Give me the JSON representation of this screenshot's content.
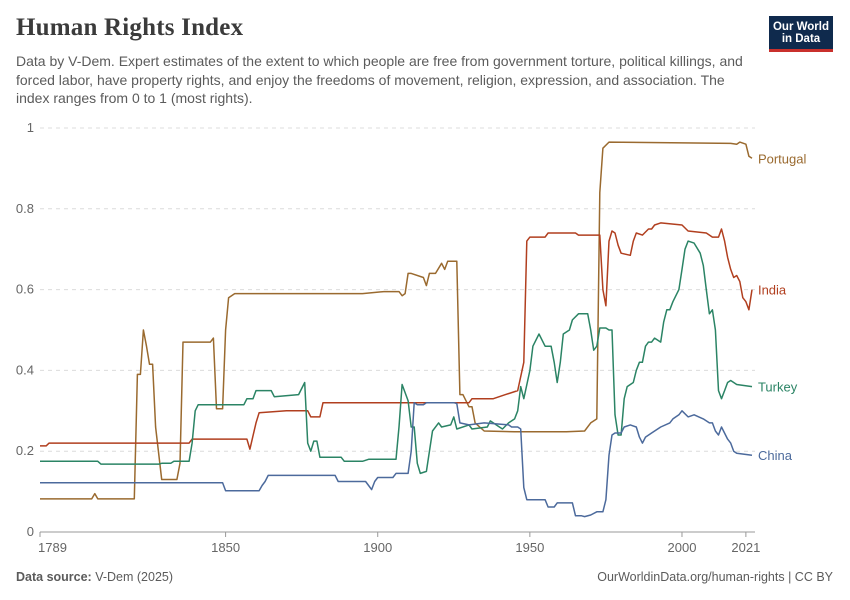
{
  "header": {
    "title": "Human Rights Index",
    "subtitle": "Data by V-Dem. Expert estimates of the extent to which people are free from government torture, political killings, and forced labor, have property rights, and enjoy the freedoms of movement, religion, expression, and association. The index ranges from 0 to 1 (most rights).",
    "logo_line1": "Our World",
    "logo_line2": "in Data"
  },
  "footer": {
    "source_label": "Data source:",
    "source_value": "V-Dem (2025)",
    "url_license": "OurWorldinData.org/human-rights | CC BY"
  },
  "chart_data": {
    "type": "line",
    "xlim": [
      1789,
      2024
    ],
    "ylim": [
      0,
      1
    ],
    "x_ticks": [
      1789,
      1850,
      1900,
      1950,
      2000,
      2021
    ],
    "y_ticks": [
      0,
      0.2,
      0.4,
      0.6,
      0.8,
      1
    ],
    "y_tick_labels": [
      "0",
      "0.2",
      "0.4",
      "0.6",
      "0.8",
      "1"
    ],
    "grid": "horizontal-dashed",
    "legend": "line-end labels",
    "series": [
      {
        "name": "Portugal",
        "color": "#9a6a2f",
        "points": [
          [
            1789,
            0.082
          ],
          [
            1806,
            0.082
          ],
          [
            1807,
            0.095
          ],
          [
            1808,
            0.082
          ],
          [
            1820,
            0.082
          ],
          [
            1821,
            0.39
          ],
          [
            1822,
            0.39
          ],
          [
            1823,
            0.5
          ],
          [
            1824,
            0.46
          ],
          [
            1825,
            0.415
          ],
          [
            1826,
            0.415
          ],
          [
            1827,
            0.26
          ],
          [
            1829,
            0.13
          ],
          [
            1834,
            0.13
          ],
          [
            1835,
            0.17
          ],
          [
            1836,
            0.47
          ],
          [
            1845,
            0.47
          ],
          [
            1846,
            0.48
          ],
          [
            1847,
            0.305
          ],
          [
            1849,
            0.305
          ],
          [
            1850,
            0.5
          ],
          [
            1851,
            0.58
          ],
          [
            1853,
            0.59
          ],
          [
            1895,
            0.59
          ],
          [
            1902,
            0.595
          ],
          [
            1907,
            0.595
          ],
          [
            1908,
            0.585
          ],
          [
            1909,
            0.59
          ],
          [
            1910,
            0.64
          ],
          [
            1911,
            0.64
          ],
          [
            1915,
            0.63
          ],
          [
            1916,
            0.61
          ],
          [
            1917,
            0.64
          ],
          [
            1919,
            0.64
          ],
          [
            1921,
            0.665
          ],
          [
            1922,
            0.65
          ],
          [
            1923,
            0.67
          ],
          [
            1926,
            0.67
          ],
          [
            1927,
            0.34
          ],
          [
            1928,
            0.34
          ],
          [
            1930,
            0.31
          ],
          [
            1931,
            0.31
          ],
          [
            1932,
            0.27
          ],
          [
            1935,
            0.25
          ],
          [
            1945,
            0.248
          ],
          [
            1962,
            0.248
          ],
          [
            1968,
            0.25
          ],
          [
            1970,
            0.27
          ],
          [
            1972,
            0.28
          ],
          [
            1973,
            0.84
          ],
          [
            1974,
            0.95
          ],
          [
            1976,
            0.965
          ],
          [
            2016,
            0.962
          ],
          [
            2018,
            0.96
          ],
          [
            2019,
            0.965
          ],
          [
            2021,
            0.96
          ],
          [
            2022,
            0.93
          ],
          [
            2023,
            0.925
          ]
        ]
      },
      {
        "name": "India",
        "color": "#b13f1f",
        "points": [
          [
            1789,
            0.213
          ],
          [
            1791,
            0.213
          ],
          [
            1792,
            0.22
          ],
          [
            1838,
            0.22
          ],
          [
            1839,
            0.23
          ],
          [
            1844,
            0.23
          ],
          [
            1857,
            0.23
          ],
          [
            1858,
            0.205
          ],
          [
            1860,
            0.27
          ],
          [
            1861,
            0.295
          ],
          [
            1870,
            0.3
          ],
          [
            1877,
            0.3
          ],
          [
            1878,
            0.285
          ],
          [
            1881,
            0.285
          ],
          [
            1882,
            0.32
          ],
          [
            1900,
            0.32
          ],
          [
            1912,
            0.32
          ],
          [
            1921,
            0.32
          ],
          [
            1930,
            0.32
          ],
          [
            1931,
            0.33
          ],
          [
            1938,
            0.33
          ],
          [
            1942,
            0.34
          ],
          [
            1946,
            0.35
          ],
          [
            1948,
            0.42
          ],
          [
            1949,
            0.72
          ],
          [
            1950,
            0.73
          ],
          [
            1955,
            0.73
          ],
          [
            1956,
            0.74
          ],
          [
            1965,
            0.74
          ],
          [
            1966,
            0.735
          ],
          [
            1973,
            0.735
          ],
          [
            1974,
            0.6
          ],
          [
            1975,
            0.56
          ],
          [
            1976,
            0.72
          ],
          [
            1977,
            0.745
          ],
          [
            1978,
            0.74
          ],
          [
            1979,
            0.71
          ],
          [
            1980,
            0.69
          ],
          [
            1983,
            0.685
          ],
          [
            1984,
            0.72
          ],
          [
            1985,
            0.74
          ],
          [
            1987,
            0.735
          ],
          [
            1989,
            0.75
          ],
          [
            1990,
            0.75
          ],
          [
            1991,
            0.76
          ],
          [
            1993,
            0.765
          ],
          [
            2000,
            0.76
          ],
          [
            2002,
            0.745
          ],
          [
            2008,
            0.74
          ],
          [
            2010,
            0.73
          ],
          [
            2011,
            0.73
          ],
          [
            2012,
            0.73
          ],
          [
            2013,
            0.75
          ],
          [
            2014,
            0.72
          ],
          [
            2015,
            0.68
          ],
          [
            2016,
            0.65
          ],
          [
            2017,
            0.63
          ],
          [
            2018,
            0.635
          ],
          [
            2019,
            0.62
          ],
          [
            2020,
            0.58
          ],
          [
            2021,
            0.57
          ],
          [
            2022,
            0.55
          ],
          [
            2023,
            0.6
          ]
        ]
      },
      {
        "name": "Turkey",
        "color": "#2b8465",
        "points": [
          [
            1789,
            0.175
          ],
          [
            1808,
            0.175
          ],
          [
            1809,
            0.168
          ],
          [
            1828,
            0.168
          ],
          [
            1829,
            0.17
          ],
          [
            1832,
            0.17
          ],
          [
            1833,
            0.175
          ],
          [
            1838,
            0.175
          ],
          [
            1839,
            0.22
          ],
          [
            1840,
            0.3
          ],
          [
            1841,
            0.315
          ],
          [
            1856,
            0.315
          ],
          [
            1857,
            0.33
          ],
          [
            1859,
            0.33
          ],
          [
            1860,
            0.35
          ],
          [
            1865,
            0.35
          ],
          [
            1866,
            0.335
          ],
          [
            1874,
            0.34
          ],
          [
            1876,
            0.37
          ],
          [
            1877,
            0.22
          ],
          [
            1878,
            0.2
          ],
          [
            1879,
            0.225
          ],
          [
            1880,
            0.225
          ],
          [
            1881,
            0.185
          ],
          [
            1888,
            0.185
          ],
          [
            1889,
            0.175
          ],
          [
            1895,
            0.175
          ],
          [
            1897,
            0.18
          ],
          [
            1902,
            0.18
          ],
          [
            1906,
            0.18
          ],
          [
            1907,
            0.26
          ],
          [
            1908,
            0.365
          ],
          [
            1910,
            0.325
          ],
          [
            1911,
            0.26
          ],
          [
            1912,
            0.26
          ],
          [
            1913,
            0.17
          ],
          [
            1914,
            0.145
          ],
          [
            1916,
            0.15
          ],
          [
            1918,
            0.25
          ],
          [
            1920,
            0.27
          ],
          [
            1921,
            0.26
          ],
          [
            1924,
            0.265
          ],
          [
            1925,
            0.285
          ],
          [
            1926,
            0.255
          ],
          [
            1930,
            0.265
          ],
          [
            1931,
            0.255
          ],
          [
            1936,
            0.26
          ],
          [
            1937,
            0.275
          ],
          [
            1940,
            0.26
          ],
          [
            1941,
            0.255
          ],
          [
            1943,
            0.27
          ],
          [
            1945,
            0.28
          ],
          [
            1946,
            0.3
          ],
          [
            1947,
            0.36
          ],
          [
            1948,
            0.33
          ],
          [
            1950,
            0.4
          ],
          [
            1951,
            0.46
          ],
          [
            1953,
            0.49
          ],
          [
            1955,
            0.46
          ],
          [
            1957,
            0.46
          ],
          [
            1958,
            0.42
          ],
          [
            1959,
            0.37
          ],
          [
            1960,
            0.42
          ],
          [
            1961,
            0.49
          ],
          [
            1963,
            0.5
          ],
          [
            1964,
            0.525
          ],
          [
            1966,
            0.54
          ],
          [
            1969,
            0.54
          ],
          [
            1970,
            0.5
          ],
          [
            1971,
            0.45
          ],
          [
            1972,
            0.46
          ],
          [
            1973,
            0.505
          ],
          [
            1975,
            0.505
          ],
          [
            1976,
            0.5
          ],
          [
            1977,
            0.5
          ],
          [
            1978,
            0.29
          ],
          [
            1979,
            0.24
          ],
          [
            1980,
            0.24
          ],
          [
            1981,
            0.33
          ],
          [
            1982,
            0.36
          ],
          [
            1984,
            0.37
          ],
          [
            1985,
            0.4
          ],
          [
            1986,
            0.42
          ],
          [
            1987,
            0.42
          ],
          [
            1988,
            0.46
          ],
          [
            1989,
            0.47
          ],
          [
            1990,
            0.47
          ],
          [
            1991,
            0.48
          ],
          [
            1993,
            0.47
          ],
          [
            1994,
            0.52
          ],
          [
            1995,
            0.55
          ],
          [
            1996,
            0.55
          ],
          [
            1997,
            0.57
          ],
          [
            1999,
            0.6
          ],
          [
            2000,
            0.65
          ],
          [
            2001,
            0.7
          ],
          [
            2002,
            0.72
          ],
          [
            2004,
            0.715
          ],
          [
            2006,
            0.69
          ],
          [
            2007,
            0.66
          ],
          [
            2008,
            0.6
          ],
          [
            2009,
            0.54
          ],
          [
            2010,
            0.55
          ],
          [
            2011,
            0.5
          ],
          [
            2012,
            0.35
          ],
          [
            2013,
            0.33
          ],
          [
            2014,
            0.35
          ],
          [
            2015,
            0.37
          ],
          [
            2016,
            0.375
          ],
          [
            2018,
            0.365
          ],
          [
            2023,
            0.36
          ]
        ]
      },
      {
        "name": "China",
        "color": "#4c6a9c",
        "points": [
          [
            1789,
            0.122
          ],
          [
            1849,
            0.122
          ],
          [
            1850,
            0.102
          ],
          [
            1861,
            0.102
          ],
          [
            1862,
            0.115
          ],
          [
            1863,
            0.125
          ],
          [
            1864,
            0.14
          ],
          [
            1886,
            0.14
          ],
          [
            1887,
            0.125
          ],
          [
            1896,
            0.125
          ],
          [
            1897,
            0.115
          ],
          [
            1898,
            0.105
          ],
          [
            1899,
            0.125
          ],
          [
            1900,
            0.135
          ],
          [
            1905,
            0.135
          ],
          [
            1906,
            0.145
          ],
          [
            1910,
            0.145
          ],
          [
            1911,
            0.2
          ],
          [
            1912,
            0.32
          ],
          [
            1913,
            0.315
          ],
          [
            1915,
            0.315
          ],
          [
            1916,
            0.32
          ],
          [
            1920,
            0.32
          ],
          [
            1925,
            0.32
          ],
          [
            1926,
            0.318
          ],
          [
            1927,
            0.27
          ],
          [
            1930,
            0.265
          ],
          [
            1935,
            0.27
          ],
          [
            1943,
            0.265
          ],
          [
            1944,
            0.26
          ],
          [
            1946,
            0.26
          ],
          [
            1947,
            0.255
          ],
          [
            1948,
            0.11
          ],
          [
            1949,
            0.08
          ],
          [
            1955,
            0.08
          ],
          [
            1956,
            0.062
          ],
          [
            1958,
            0.062
          ],
          [
            1959,
            0.072
          ],
          [
            1964,
            0.072
          ],
          [
            1965,
            0.04
          ],
          [
            1967,
            0.04
          ],
          [
            1968,
            0.038
          ],
          [
            1970,
            0.042
          ],
          [
            1972,
            0.05
          ],
          [
            1974,
            0.05
          ],
          [
            1975,
            0.08
          ],
          [
            1976,
            0.19
          ],
          [
            1977,
            0.24
          ],
          [
            1978,
            0.245
          ],
          [
            1980,
            0.245
          ],
          [
            1981,
            0.26
          ],
          [
            1983,
            0.265
          ],
          [
            1985,
            0.26
          ],
          [
            1986,
            0.235
          ],
          [
            1987,
            0.22
          ],
          [
            1988,
            0.235
          ],
          [
            1990,
            0.245
          ],
          [
            1993,
            0.26
          ],
          [
            1996,
            0.27
          ],
          [
            1997,
            0.28
          ],
          [
            1999,
            0.29
          ],
          [
            2000,
            0.3
          ],
          [
            2002,
            0.285
          ],
          [
            2004,
            0.29
          ],
          [
            2007,
            0.28
          ],
          [
            2009,
            0.27
          ],
          [
            2010,
            0.27
          ],
          [
            2011,
            0.25
          ],
          [
            2012,
            0.24
          ],
          [
            2013,
            0.26
          ],
          [
            2015,
            0.23
          ],
          [
            2016,
            0.22
          ],
          [
            2017,
            0.2
          ],
          [
            2018,
            0.195
          ],
          [
            2023,
            0.19
          ]
        ]
      }
    ]
  }
}
